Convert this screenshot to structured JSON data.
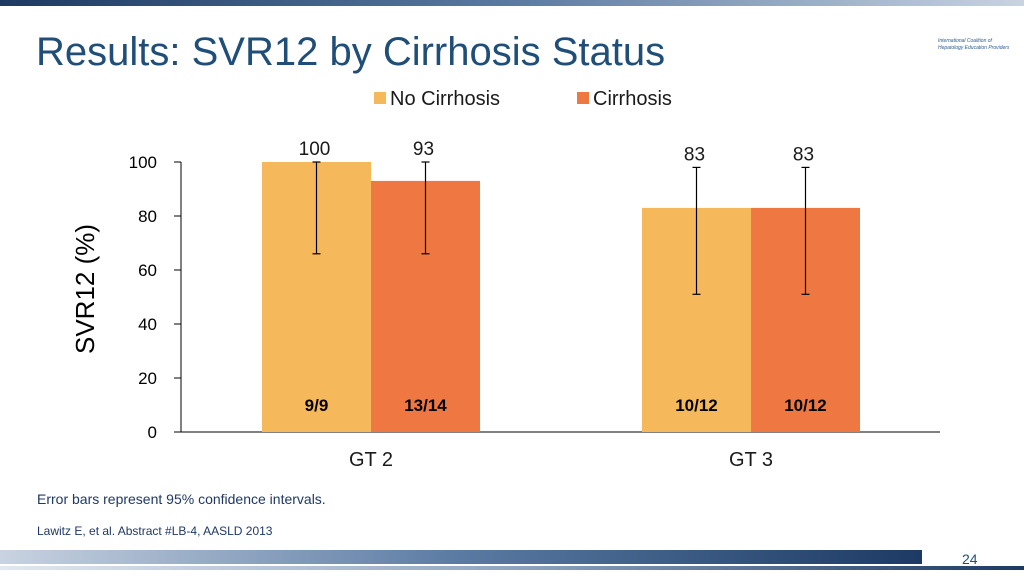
{
  "slide": {
    "title": "Results: SVR12 by Cirrhosis Status",
    "logo_text": "International Coalition of Hepatology Education Providers",
    "footnote": "Error bars represent 95% confidence intervals.",
    "citation": "Lawitz E, et al. Abstract #LB-4, AASLD 2013",
    "page_number": "24"
  },
  "chart_data": {
    "type": "bar",
    "title": "",
    "xlabel": "",
    "ylabel": "SVR12 (%)",
    "ylim": [
      0,
      100
    ],
    "yticks": [
      0,
      20,
      40,
      60,
      80,
      100
    ],
    "categories": [
      "GT 2",
      "GT 3"
    ],
    "legend_position": "top",
    "series": [
      {
        "name": "No Cirrhosis",
        "color": "#f5b95b",
        "values": [
          100,
          83
        ],
        "value_labels": [
          "100",
          "83"
        ],
        "n_labels": [
          "9/9",
          "10/12"
        ],
        "ci_low": [
          66,
          51
        ],
        "ci_high": [
          100,
          98
        ]
      },
      {
        "name": "Cirrhosis",
        "color": "#ef7842",
        "values": [
          93,
          83
        ],
        "value_labels": [
          "93",
          "83"
        ],
        "n_labels": [
          "13/14",
          "10/12"
        ],
        "ci_low": [
          66,
          51
        ],
        "ci_high": [
          100,
          98
        ]
      }
    ]
  }
}
